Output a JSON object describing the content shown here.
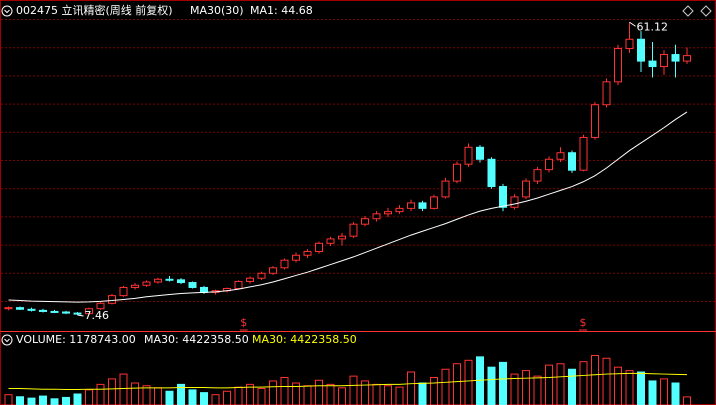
{
  "chart_data": {
    "type": "candlestick",
    "title": "002475 立讯精密(周线 前复权)",
    "legend": [
      "MA30(30)",
      "MA1: 44.68"
    ],
    "ylim": [
      4.7,
      65.2
    ],
    "up_color": "#ff3232",
    "down_color": "#54ffff",
    "ma_color": "#ffffff",
    "candles": [
      [
        8.6,
        9.0,
        8.3,
        8.8
      ],
      [
        8.8,
        9.0,
        8.4,
        8.5
      ],
      [
        8.5,
        8.8,
        8.1,
        8.3
      ],
      [
        8.3,
        8.6,
        7.9,
        8.1
      ],
      [
        8.1,
        8.4,
        7.8,
        8.0
      ],
      [
        8.0,
        8.2,
        7.6,
        7.8
      ],
      [
        7.8,
        8.0,
        7.46,
        7.7
      ],
      [
        7.7,
        8.8,
        7.6,
        8.6
      ],
      [
        8.6,
        9.8,
        8.4,
        9.6
      ],
      [
        9.6,
        11.3,
        9.4,
        11.0
      ],
      [
        11.0,
        12.8,
        10.8,
        12.5
      ],
      [
        12.5,
        13.3,
        12.1,
        12.9
      ],
      [
        12.9,
        13.8,
        12.6,
        13.5
      ],
      [
        13.5,
        14.3,
        13.2,
        14.0
      ],
      [
        14.0,
        14.6,
        13.6,
        13.9
      ],
      [
        13.9,
        14.2,
        13.1,
        13.4
      ],
      [
        13.4,
        13.6,
        12.3,
        12.5
      ],
      [
        12.5,
        12.8,
        11.3,
        11.6
      ],
      [
        11.6,
        12.1,
        11.2,
        11.9
      ],
      [
        11.9,
        12.5,
        11.6,
        12.3
      ],
      [
        12.3,
        13.8,
        12.1,
        13.6
      ],
      [
        13.6,
        14.5,
        13.2,
        14.2
      ],
      [
        14.2,
        15.4,
        13.9,
        15.1
      ],
      [
        15.1,
        16.4,
        14.8,
        16.1
      ],
      [
        16.1,
        17.8,
        15.8,
        17.5
      ],
      [
        17.5,
        18.9,
        17.1,
        18.4
      ],
      [
        18.4,
        19.5,
        17.9,
        19.1
      ],
      [
        19.1,
        20.9,
        18.7,
        20.6
      ],
      [
        20.6,
        21.8,
        20.1,
        21.4
      ],
      [
        21.4,
        22.5,
        20.2,
        21.9
      ],
      [
        21.9,
        24.5,
        21.6,
        24.1
      ],
      [
        24.1,
        25.6,
        23.7,
        25.1
      ],
      [
        25.1,
        26.5,
        24.6,
        26.0
      ],
      [
        26.0,
        27.1,
        25.4,
        26.4
      ],
      [
        26.4,
        27.6,
        26.0,
        27.0
      ],
      [
        27.0,
        28.6,
        26.5,
        28.0
      ],
      [
        28.0,
        28.4,
        26.5,
        27.0
      ],
      [
        27.0,
        29.5,
        26.8,
        29.1
      ],
      [
        29.1,
        32.6,
        28.8,
        32.0
      ],
      [
        32.0,
        35.6,
        31.6,
        35.1
      ],
      [
        35.1,
        38.9,
        34.6,
        38.2
      ],
      [
        38.2,
        38.6,
        35.4,
        36.0
      ],
      [
        36.0,
        36.4,
        30.6,
        31.0
      ],
      [
        31.0,
        31.5,
        26.5,
        27.2
      ],
      [
        27.2,
        29.6,
        26.8,
        29.1
      ],
      [
        29.1,
        32.5,
        28.7,
        32.0
      ],
      [
        32.0,
        34.6,
        31.5,
        34.1
      ],
      [
        34.1,
        36.5,
        33.6,
        36.0
      ],
      [
        36.0,
        38.2,
        35.5,
        37.2
      ],
      [
        37.2,
        37.6,
        33.5,
        34.0
      ],
      [
        34.0,
        40.5,
        33.8,
        40.0
      ],
      [
        40.0,
        46.5,
        39.6,
        46.0
      ],
      [
        46.0,
        50.8,
        45.5,
        50.2
      ],
      [
        50.2,
        57.0,
        49.6,
        56.3
      ],
      [
        56.3,
        61.12,
        55.5,
        58.0
      ],
      [
        58.0,
        59.5,
        52.0,
        54.0
      ],
      [
        54.0,
        57.5,
        51.0,
        53.0
      ],
      [
        53.0,
        56.0,
        51.5,
        55.2
      ],
      [
        55.2,
        57.0,
        51.0,
        54.0
      ],
      [
        54.0,
        56.5,
        53.5,
        55.0
      ]
    ],
    "ma30": [
      10.2,
      10.1,
      10.0,
      9.95,
      9.9,
      9.85,
      9.8,
      9.85,
      9.95,
      10.1,
      10.3,
      10.5,
      10.8,
      11.0,
      11.2,
      11.4,
      11.5,
      11.6,
      11.7,
      11.9,
      12.2,
      12.6,
      13.0,
      13.5,
      14.1,
      14.7,
      15.3,
      16.0,
      16.7,
      17.4,
      18.1,
      18.9,
      19.7,
      20.5,
      21.3,
      22.1,
      22.8,
      23.5,
      24.2,
      25.0,
      25.8,
      26.5,
      27.0,
      27.4,
      27.8,
      28.3,
      28.9,
      29.6,
      30.3,
      31.0,
      31.9,
      33.0,
      34.4,
      36.0,
      37.6,
      39.0,
      40.4,
      41.8,
      43.3,
      44.68
    ],
    "annotations": [
      "61.12",
      "7.46"
    ],
    "markers": [
      "$",
      "$"
    ],
    "volume": {
      "legend": [
        "VOLUME: 1178743.00",
        "MA30: 4422358.50",
        "MA30: 4422358.50"
      ],
      "ylim": [
        0,
        8000000
      ],
      "ma_color": "#ffff00",
      "values": [
        1500000,
        1200000,
        1000000,
        1300000,
        900000,
        1100000,
        1600000,
        2200000,
        3000000,
        3800000,
        4500000,
        3200000,
        2800000,
        2500000,
        2000000,
        3000000,
        2200000,
        1800000,
        1500000,
        2000000,
        2600000,
        3000000,
        2400000,
        3500000,
        4000000,
        3200000,
        2800000,
        3600000,
        3000000,
        2500000,
        4200000,
        3500000,
        3000000,
        2800000,
        2600000,
        4800000,
        3200000,
        4000000,
        5200000,
        6000000,
        6500000,
        7000000,
        5500000,
        6200000,
        4500000,
        5000000,
        4200000,
        5800000,
        6000000,
        5200000,
        6300000,
        7200000,
        6800000,
        5500000,
        5000000,
        4800000,
        3500000,
        3800000,
        3200000,
        1178743
      ],
      "ma30": [
        2400000,
        2400000,
        2350000,
        2300000,
        2300000,
        2250000,
        2250000,
        2300000,
        2300000,
        2350000,
        2400000,
        2450000,
        2500000,
        2500000,
        2500000,
        2550000,
        2550000,
        2550000,
        2500000,
        2500000,
        2550000,
        2600000,
        2600000,
        2650000,
        2700000,
        2700000,
        2750000,
        2800000,
        2800000,
        2800000,
        2850000,
        2900000,
        2950000,
        3000000,
        3000000,
        3100000,
        3150000,
        3200000,
        3300000,
        3400000,
        3500000,
        3600000,
        3700000,
        3800000,
        3850000,
        3900000,
        3950000,
        4000000,
        4100000,
        4200000,
        4300000,
        4400000,
        4500000,
        4550000,
        4600000,
        4600000,
        4550000,
        4500000,
        4450000,
        4422358.5
      ]
    }
  }
}
